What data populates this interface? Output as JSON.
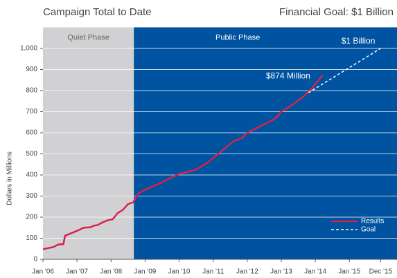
{
  "chart_data": {
    "type": "line",
    "title": "Campaign Total to Date",
    "subtitle": "Financial Goal: $1 Billion",
    "ylabel": "Dollars in Millions",
    "xlim": [
      2006,
      2016.4
    ],
    "ylim": [
      0,
      1100
    ],
    "xticks": [
      {
        "value": 2006,
        "label": "Jan '06"
      },
      {
        "value": 2007,
        "label": "Jan '07"
      },
      {
        "value": 2008,
        "label": "Jan '08"
      },
      {
        "value": 2009,
        "label": "Jan '09"
      },
      {
        "value": 2010,
        "label": "Jan '10"
      },
      {
        "value": 2011,
        "label": "Jan '11"
      },
      {
        "value": 2012,
        "label": "Jan '12"
      },
      {
        "value": 2013,
        "label": "Jan '13"
      },
      {
        "value": 2014,
        "label": "Jan '14"
      },
      {
        "value": 2015,
        "label": "Jan '15"
      },
      {
        "value": 2015.92,
        "label": "Dec '15"
      }
    ],
    "yticks": [
      0,
      100,
      200,
      300,
      400,
      500,
      600,
      700,
      800,
      900,
      {
        "value": 1000,
        "label": "1,000"
      }
    ],
    "grid": true,
    "phases": [
      {
        "label": "Quiet Phase",
        "start": 2006,
        "end": 2008.67,
        "color": "#d1d1d3"
      },
      {
        "label": "Public Phase",
        "start": 2008.67,
        "end": 2016.4,
        "color": "#0053a0"
      }
    ],
    "series": [
      {
        "name": "Results",
        "color": "#d6234a",
        "dash": false,
        "x": [
          2006.0,
          2006.3,
          2006.45,
          2006.6,
          2006.65,
          2007.0,
          2007.2,
          2007.4,
          2007.5,
          2007.6,
          2007.75,
          2007.9,
          2008.05,
          2008.2,
          2008.35,
          2008.5,
          2008.65,
          2008.8,
          2009.0,
          2009.5,
          2009.8,
          2010.0,
          2010.5,
          2010.8,
          2011.0,
          2011.3,
          2011.6,
          2011.85,
          2012.0,
          2012.5,
          2012.8,
          2012.9,
          2013.0,
          2013.3,
          2013.6,
          2013.9,
          2014.22
        ],
        "values": [
          48,
          58,
          70,
          72,
          112,
          135,
          150,
          152,
          160,
          162,
          175,
          185,
          190,
          220,
          235,
          262,
          270,
          312,
          330,
          365,
          390,
          405,
          425,
          455,
          480,
          520,
          560,
          575,
          600,
          640,
          665,
          680,
          700,
          730,
          765,
          810,
          874
        ]
      },
      {
        "name": "Goal",
        "color": "#ffffff",
        "dash": true,
        "x": [
          2013.8,
          2015.92
        ],
        "values": [
          790,
          1000
        ]
      }
    ],
    "annotations": [
      {
        "text": "$874 Million",
        "x": 2014.22,
        "y": 874
      },
      {
        "text": "$1 Billion",
        "x": 2015.92,
        "y": 1000
      }
    ],
    "legend": "lower right"
  }
}
